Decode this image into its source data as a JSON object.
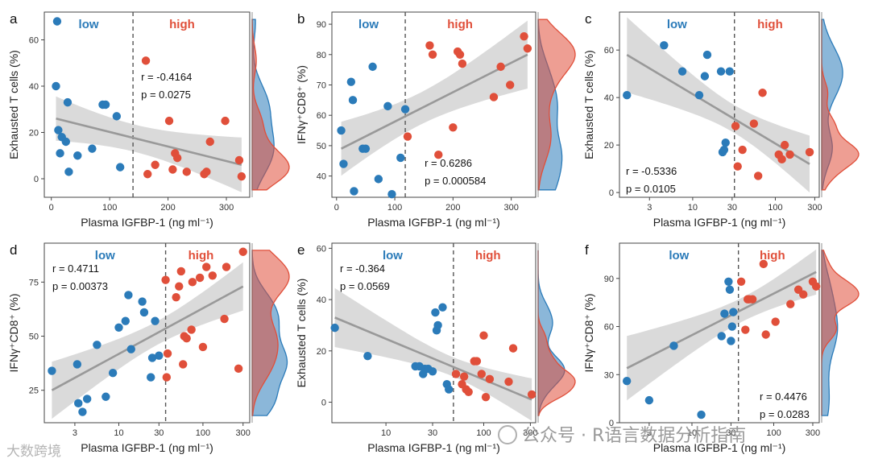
{
  "colors": {
    "low": "#2b7bb9",
    "high": "#e04f3a",
    "fit": "#999999",
    "band": "#d3d3d3"
  },
  "chart_data": [
    {
      "type": "scatter",
      "id": "a",
      "letter": "a",
      "xlabel": "Plasma IGFBP-1 (ng ml⁻¹)",
      "ylabel": "Exhausted T cells (%)",
      "xscale": "linear",
      "xlim": [
        -12,
        340
      ],
      "ylim": [
        -8,
        72
      ],
      "xticks": [
        0,
        100,
        200,
        300
      ],
      "xtick_labels": [
        "0",
        "100",
        "200",
        "300"
      ],
      "yticks": [
        0,
        20,
        40,
        60
      ],
      "ytick_labels": [
        "0",
        "20",
        "40",
        "60"
      ],
      "cutoff": 140,
      "group_low": "low",
      "group_high": "high",
      "stat_r": "r = -0.4164",
      "stat_p": "p = 0.0275",
      "stat_pos": "top-middle",
      "fit": [
        26,
        6
      ],
      "low_points": [
        [
          10,
          68
        ],
        [
          8,
          40
        ],
        [
          12,
          21
        ],
        [
          15,
          11
        ],
        [
          18,
          18
        ],
        [
          25,
          16
        ],
        [
          28,
          33
        ],
        [
          30,
          3
        ],
        [
          45,
          10
        ],
        [
          70,
          13
        ],
        [
          88,
          32
        ],
        [
          93,
          32
        ],
        [
          112,
          27
        ],
        [
          118,
          5
        ]
      ],
      "high_points": [
        [
          162,
          51
        ],
        [
          165,
          2
        ],
        [
          178,
          6
        ],
        [
          202,
          25
        ],
        [
          208,
          4
        ],
        [
          212,
          11
        ],
        [
          216,
          9
        ],
        [
          232,
          3
        ],
        [
          262,
          2
        ],
        [
          266,
          3
        ],
        [
          272,
          16
        ],
        [
          298,
          25
        ],
        [
          322,
          8
        ],
        [
          326,
          1
        ]
      ]
    },
    {
      "type": "scatter",
      "id": "b",
      "letter": "b",
      "xlabel": "Plasma IGFBP-1 (ng ml⁻¹)",
      "ylabel": "IFNγ⁺CD8⁺ (%)",
      "xscale": "linear",
      "xlim": [
        -8,
        342
      ],
      "ylim": [
        33,
        94
      ],
      "xticks": [
        0,
        100,
        200,
        300
      ],
      "xtick_labels": [
        "0",
        "100",
        "200",
        "300"
      ],
      "yticks": [
        40,
        50,
        60,
        70,
        80,
        90
      ],
      "ytick_labels": [
        "40",
        "50",
        "60",
        "70",
        "80",
        "90"
      ],
      "cutoff": 118,
      "group_low": "low",
      "group_high": "high",
      "stat_r": "r = 0.6286",
      "stat_p": "p = 0.000584",
      "stat_pos": "bottom-middle",
      "fit": [
        49,
        80
      ],
      "low_points": [
        [
          8,
          55
        ],
        [
          12,
          44
        ],
        [
          25,
          71
        ],
        [
          28,
          65
        ],
        [
          30,
          35
        ],
        [
          45,
          49
        ],
        [
          50,
          49
        ],
        [
          62,
          76
        ],
        [
          72,
          39
        ],
        [
          88,
          63
        ],
        [
          95,
          34
        ],
        [
          110,
          46
        ],
        [
          118,
          62
        ]
      ],
      "high_points": [
        [
          122,
          53
        ],
        [
          160,
          83
        ],
        [
          165,
          80
        ],
        [
          175,
          47
        ],
        [
          200,
          56
        ],
        [
          208,
          81
        ],
        [
          212,
          80
        ],
        [
          216,
          77
        ],
        [
          270,
          66
        ],
        [
          282,
          76
        ],
        [
          298,
          70
        ],
        [
          322,
          86
        ],
        [
          328,
          82
        ]
      ]
    },
    {
      "type": "scatter",
      "id": "c",
      "letter": "c",
      "xlabel": "Plasma IGFBP-1 (ng ml⁻¹)",
      "ylabel": "Exhausted T cells (%)",
      "xscale": "log",
      "xlim": [
        1.3,
        340
      ],
      "ylim": [
        -2,
        76
      ],
      "xticks": [
        3,
        10,
        30,
        100,
        300
      ],
      "xtick_labels": [
        "3",
        "10",
        "30",
        "100",
        "300"
      ],
      "yticks": [
        0,
        20,
        40,
        60
      ],
      "ytick_labels": [
        "0",
        "20",
        "40",
        "60"
      ],
      "cutoff": 32,
      "group_low": "low",
      "group_high": "high",
      "stat_r": "r = -0.5336",
      "stat_p": "p = 0.0105",
      "stat_pos": "bottom-left",
      "fit": [
        58,
        12
      ],
      "low_points": [
        [
          1.6,
          41
        ],
        [
          4.5,
          62
        ],
        [
          7.5,
          51
        ],
        [
          12,
          41
        ],
        [
          14,
          49
        ],
        [
          15,
          58
        ],
        [
          22,
          51
        ],
        [
          23,
          17
        ],
        [
          24,
          18
        ],
        [
          25,
          21
        ],
        [
          28,
          51
        ]
      ],
      "high_points": [
        [
          33,
          28
        ],
        [
          35,
          11
        ],
        [
          40,
          18
        ],
        [
          55,
          29
        ],
        [
          62,
          7
        ],
        [
          70,
          42
        ],
        [
          110,
          16
        ],
        [
          120,
          14
        ],
        [
          130,
          20
        ],
        [
          150,
          16
        ],
        [
          260,
          17
        ]
      ]
    },
    {
      "type": "scatter",
      "id": "d",
      "letter": "d",
      "xlabel": "Plasma IGFBP-1 (ng ml⁻¹)",
      "ylabel": "IFNγ⁺CD8⁺ (%)",
      "xscale": "log",
      "xlim": [
        1.3,
        360
      ],
      "ylim": [
        10,
        93
      ],
      "xticks": [
        3,
        10,
        30,
        100,
        300
      ],
      "xtick_labels": [
        "3",
        "10",
        "30",
        "100",
        "300"
      ],
      "yticks": [
        25,
        50,
        75
      ],
      "ytick_labels": [
        "25",
        "50",
        "75"
      ],
      "cutoff": 36,
      "group_low": "low",
      "group_high": "high",
      "stat_r": "r = 0.4711",
      "stat_p": "p = 0.00373",
      "stat_pos": "top-left",
      "fit": [
        25,
        73
      ],
      "low_points": [
        [
          1.6,
          34
        ],
        [
          3.2,
          37
        ],
        [
          3.3,
          19
        ],
        [
          3.7,
          15
        ],
        [
          4.2,
          21
        ],
        [
          5.5,
          46
        ],
        [
          7,
          22
        ],
        [
          8.5,
          33
        ],
        [
          10,
          54
        ],
        [
          12,
          57
        ],
        [
          13,
          69
        ],
        [
          14,
          44
        ],
        [
          19,
          66
        ],
        [
          20,
          61
        ],
        [
          24,
          31
        ],
        [
          25,
          40
        ],
        [
          27,
          57
        ],
        [
          30,
          41
        ]
      ],
      "high_points": [
        [
          36,
          76
        ],
        [
          37,
          31
        ],
        [
          38,
          42
        ],
        [
          48,
          68
        ],
        [
          52,
          73
        ],
        [
          55,
          80
        ],
        [
          58,
          37
        ],
        [
          60,
          50
        ],
        [
          64,
          49
        ],
        [
          73,
          53
        ],
        [
          75,
          75
        ],
        [
          92,
          77
        ],
        [
          100,
          45
        ],
        [
          110,
          82
        ],
        [
          130,
          78
        ],
        [
          180,
          58
        ],
        [
          190,
          82
        ],
        [
          265,
          35
        ],
        [
          300,
          89
        ]
      ]
    },
    {
      "type": "scatter",
      "id": "e",
      "letter": "e",
      "xlabel": "Plasma IGFBP-1 (ng ml⁻¹)",
      "ylabel": "Exhausted T cells (%)",
      "xscale": "log",
      "xlim": [
        2.8,
        340
      ],
      "ylim": [
        -8,
        62
      ],
      "xticks": [
        10,
        30,
        100,
        300
      ],
      "xtick_labels": [
        "10",
        "30",
        "100",
        "300"
      ],
      "yticks": [
        0,
        20,
        40,
        60
      ],
      "ytick_labels": [
        "0",
        "20",
        "40",
        "60"
      ],
      "cutoff": 49,
      "group_low": "low",
      "group_high": "high",
      "stat_r": "r = -0.364",
      "stat_p": "p = 0.0569",
      "stat_pos": "top-left",
      "fit": [
        33,
        1
      ],
      "low_points": [
        [
          3,
          29
        ],
        [
          6.5,
          18
        ],
        [
          20,
          14
        ],
        [
          22,
          14
        ],
        [
          24,
          11
        ],
        [
          25,
          13
        ],
        [
          27,
          13
        ],
        [
          30,
          12
        ],
        [
          32,
          35
        ],
        [
          33,
          28
        ],
        [
          34,
          30
        ],
        [
          38,
          37
        ],
        [
          42,
          7
        ],
        [
          44,
          5
        ]
      ],
      "high_points": [
        [
          52,
          11
        ],
        [
          60,
          7
        ],
        [
          63,
          10
        ],
        [
          66,
          5
        ],
        [
          70,
          4
        ],
        [
          80,
          16
        ],
        [
          85,
          16
        ],
        [
          95,
          11
        ],
        [
          100,
          26
        ],
        [
          105,
          2
        ],
        [
          115,
          9
        ],
        [
          180,
          8
        ],
        [
          200,
          21
        ],
        [
          310,
          3
        ]
      ]
    },
    {
      "type": "scatter",
      "id": "f",
      "letter": "f",
      "xlabel": "Plasma IGFBP-1 (ng ml⁻¹)",
      "ylabel": "IFNγ⁺CD8⁺ (%)",
      "xscale": "log",
      "xlim": [
        1.3,
        360
      ],
      "ylim": [
        0,
        112
      ],
      "xticks": [
        3,
        10,
        30,
        100,
        300
      ],
      "xtick_labels": [
        "3",
        "10",
        "30",
        "100",
        "300"
      ],
      "yticks": [
        0,
        30,
        60,
        90
      ],
      "ytick_labels": [
        "0",
        "30",
        "60",
        "90"
      ],
      "cutoff": 37,
      "group_low": "low",
      "group_high": "high",
      "stat_r": "r = 0.4476",
      "stat_p": "p = 0.0283",
      "stat_pos": "bottom-right",
      "fit": [
        34,
        94
      ],
      "low_points": [
        [
          1.6,
          26
        ],
        [
          3,
          14
        ],
        [
          6,
          48
        ],
        [
          13,
          5
        ],
        [
          23,
          54
        ],
        [
          25,
          68
        ],
        [
          28,
          88
        ],
        [
          29,
          83
        ],
        [
          30,
          51
        ],
        [
          31,
          60
        ],
        [
          32,
          69
        ]
      ],
      "high_points": [
        [
          40,
          88
        ],
        [
          45,
          58
        ],
        [
          48,
          77
        ],
        [
          50,
          77
        ],
        [
          55,
          77
        ],
        [
          75,
          99
        ],
        [
          80,
          55
        ],
        [
          105,
          63
        ],
        [
          160,
          74
        ],
        [
          200,
          83
        ],
        [
          230,
          80
        ],
        [
          300,
          88
        ],
        [
          330,
          85
        ]
      ]
    }
  ],
  "watermark": {
    "left": "大数跨境",
    "right": "公众号 · R语言数据分析指南"
  }
}
